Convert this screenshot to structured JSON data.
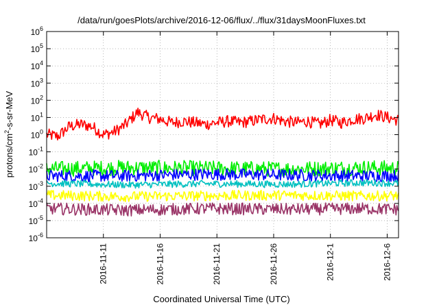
{
  "chart_data": {
    "type": "line",
    "title": "/data/run/goesPlots/archive/2016-12-06/flux/../flux/31daysMoonFluxes.txt",
    "xlabel": "Coordinated Universal Time (UTC)",
    "ylabel": {
      "prefix": "protons/cm",
      "sup": "2",
      "suffix": "-s-sr-MeV"
    },
    "yscale": "log",
    "ylim": [
      1e-06,
      1000000.0
    ],
    "y_ticks": [
      {
        "base": "10",
        "exp": "-6"
      },
      {
        "base": "10",
        "exp": "-5"
      },
      {
        "base": "10",
        "exp": "-4"
      },
      {
        "base": "10",
        "exp": "-3"
      },
      {
        "base": "10",
        "exp": "-2"
      },
      {
        "base": "10",
        "exp": "-1"
      },
      {
        "base": "10",
        "exp": "0"
      },
      {
        "base": "10",
        "exp": "1"
      },
      {
        "base": "10",
        "exp": "2"
      },
      {
        "base": "10",
        "exp": "3"
      },
      {
        "base": "10",
        "exp": "4"
      },
      {
        "base": "10",
        "exp": "5"
      },
      {
        "base": "10",
        "exp": "6"
      }
    ],
    "xlim": [
      "2016-11-06",
      "2016-12-07"
    ],
    "x_ticks": [
      "2016-11-11",
      "2016-11-16",
      "2016-11-21",
      "2016-11-26",
      "2016-12-1",
      "2016-12-6"
    ],
    "grid": true,
    "series": [
      {
        "color": "#ff0000",
        "x": [
          "2016-11-06",
          "2016-11-07",
          "2016-11-08",
          "2016-11-09",
          "2016-11-10",
          "2016-11-11",
          "2016-11-12",
          "2016-11-13",
          "2016-11-14",
          "2016-11-15",
          "2016-11-16",
          "2016-11-17",
          "2016-11-18",
          "2016-11-19",
          "2016-11-20",
          "2016-11-21",
          "2016-11-22",
          "2016-11-23",
          "2016-11-24",
          "2016-11-25",
          "2016-11-26",
          "2016-11-27",
          "2016-11-28",
          "2016-11-29",
          "2016-11-30",
          "2016-12-01",
          "2016-12-02",
          "2016-12-03",
          "2016-12-04",
          "2016-12-05",
          "2016-12-06",
          "2016-12-07"
        ],
        "y": [
          1,
          0.8,
          3,
          4,
          3,
          1,
          1.5,
          4,
          20,
          10,
          8,
          5,
          6,
          5,
          4,
          5,
          6,
          5,
          6,
          8,
          9,
          6,
          5,
          6,
          4,
          7,
          5,
          8,
          9,
          15,
          10,
          7
        ]
      },
      {
        "color": "#00ee00",
        "x": [
          "2016-11-06",
          "2016-11-13",
          "2016-11-20",
          "2016-11-27",
          "2016-12-04",
          "2016-12-07"
        ],
        "y": [
          0.01,
          0.012,
          0.011,
          0.01,
          0.012,
          0.011
        ]
      },
      {
        "color": "#0000ff",
        "x": [
          "2016-11-06",
          "2016-11-13",
          "2016-11-20",
          "2016-11-27",
          "2016-12-04",
          "2016-12-07"
        ],
        "y": [
          0.004,
          0.004,
          0.005,
          0.0045,
          0.004,
          0.0042
        ]
      },
      {
        "color": "#00c0c0",
        "x": [
          "2016-11-06",
          "2016-11-13",
          "2016-11-20",
          "2016-11-27",
          "2016-12-04",
          "2016-12-07"
        ],
        "y": [
          0.0015,
          0.0012,
          0.0014,
          0.0013,
          0.0016,
          0.0015
        ]
      },
      {
        "color": "#ffff00",
        "x": [
          "2016-11-06",
          "2016-11-13",
          "2016-11-20",
          "2016-11-27",
          "2016-12-04",
          "2016-12-07"
        ],
        "y": [
          0.0003,
          0.00025,
          0.00028,
          0.0003,
          0.00027,
          0.00028
        ]
      },
      {
        "color": "#993366",
        "x": [
          "2016-11-06",
          "2016-11-13",
          "2016-11-20",
          "2016-11-27",
          "2016-12-04",
          "2016-12-07"
        ],
        "y": [
          5e-05,
          4e-05,
          5e-05,
          4.5e-05,
          5e-05,
          4.5e-05
        ]
      }
    ]
  }
}
